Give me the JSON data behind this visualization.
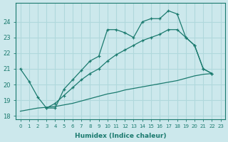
{
  "xlabel": "Humidex (Indice chaleur)",
  "bg_color": "#cce8ec",
  "grid_color": "#b0d8dc",
  "line_color": "#1a7a6e",
  "xlim": [
    -0.5,
    23.5
  ],
  "ylim": [
    17.8,
    25.2
  ],
  "xticks": [
    0,
    1,
    2,
    3,
    4,
    5,
    6,
    7,
    8,
    9,
    10,
    11,
    12,
    13,
    14,
    15,
    16,
    17,
    18,
    19,
    20,
    21,
    22,
    23
  ],
  "yticks": [
    18,
    19,
    20,
    21,
    22,
    23,
    24
  ],
  "line1_x": [
    0,
    1,
    2,
    3,
    4,
    5,
    6,
    7,
    8,
    9,
    10,
    11,
    12,
    13,
    14,
    15,
    16,
    17,
    18,
    19,
    20,
    21,
    22
  ],
  "line1_y": [
    21.0,
    20.2,
    19.2,
    18.5,
    18.5,
    19.7,
    20.3,
    20.9,
    21.5,
    21.8,
    23.5,
    23.5,
    23.3,
    23.0,
    24.0,
    24.2,
    24.2,
    24.7,
    24.5,
    23.0,
    22.5,
    21.0,
    20.7
  ],
  "line2_x": [
    3,
    4,
    5,
    6,
    7,
    8,
    9,
    10,
    11,
    12,
    13,
    14,
    15,
    16,
    17,
    18,
    19,
    20,
    21,
    22
  ],
  "line2_y": [
    18.5,
    18.8,
    19.3,
    19.8,
    20.3,
    20.7,
    21.0,
    21.5,
    21.9,
    22.2,
    22.5,
    22.8,
    23.0,
    23.2,
    23.5,
    23.5,
    23.0,
    22.5,
    21.0,
    20.7
  ],
  "line3_x": [
    0,
    1,
    2,
    3,
    4,
    5,
    6,
    7,
    8,
    9,
    10,
    11,
    12,
    13,
    14,
    15,
    16,
    17,
    18,
    19,
    20,
    21,
    22
  ],
  "line3_y": [
    18.3,
    18.4,
    18.5,
    18.55,
    18.6,
    18.7,
    18.8,
    18.95,
    19.1,
    19.25,
    19.4,
    19.5,
    19.65,
    19.75,
    19.85,
    19.95,
    20.05,
    20.15,
    20.25,
    20.4,
    20.55,
    20.65,
    20.7
  ]
}
